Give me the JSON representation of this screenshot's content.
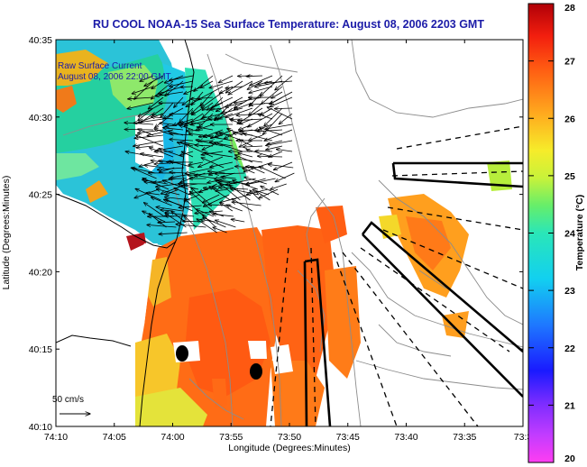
{
  "title": "RU COOL  NOAA-15  Sea Surface Temperature:  August 08, 2006 2203 GMT",
  "annotation": {
    "line1": "Raw Surface Current",
    "line2": "August 08, 2006 22:00 GMT"
  },
  "scale_label": "50 cm/s",
  "axes": {
    "xlabel": "Longitude (Degrees:Minutes)",
    "ylabel": "Latitude (Degrees:Minutes)",
    "x_ticks": [
      "74:10",
      "74:05",
      "74:00",
      "73:55",
      "73:50",
      "73:45",
      "73:40",
      "73:35",
      "73:3"
    ],
    "y_ticks": [
      "40:35",
      "40:30",
      "40:25",
      "40:20",
      "40:15",
      "40:10"
    ]
  },
  "colorbar": {
    "label": "Temperature (°C)",
    "ticks": [
      "28",
      "27",
      "26",
      "25",
      "24",
      "23",
      "22",
      "21",
      "20"
    ],
    "min": 20,
    "max": 28
  },
  "colors": {
    "title": "#1c1ca8",
    "annotation": "#1c1ca8",
    "land": "#ffffff",
    "coast": "#000000",
    "contour": "#8c8c8c"
  }
}
